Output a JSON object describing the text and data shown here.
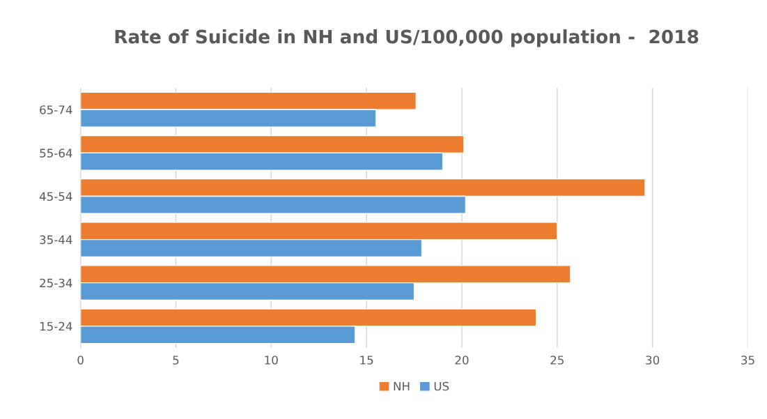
{
  "chart_data": {
    "type": "bar",
    "orientation": "horizontal",
    "title": "Rate of Suicide in NH and US/100,000 population -  2018",
    "categories": [
      "65-74",
      "55-64",
      "45-54",
      "35-44",
      "25-34",
      "15-24"
    ],
    "series": [
      {
        "name": "NH",
        "color": "#ed7d31",
        "values": [
          17.6,
          20.1,
          29.6,
          25.0,
          25.7,
          23.9
        ]
      },
      {
        "name": "US",
        "color": "#5b9bd5",
        "values": [
          15.5,
          19.0,
          20.2,
          17.9,
          17.5,
          14.4
        ]
      }
    ],
    "xlim": [
      0,
      35
    ],
    "xticks": [
      0,
      5,
      10,
      15,
      20,
      25,
      30,
      35
    ],
    "grid": "x",
    "legend": "bottom"
  }
}
